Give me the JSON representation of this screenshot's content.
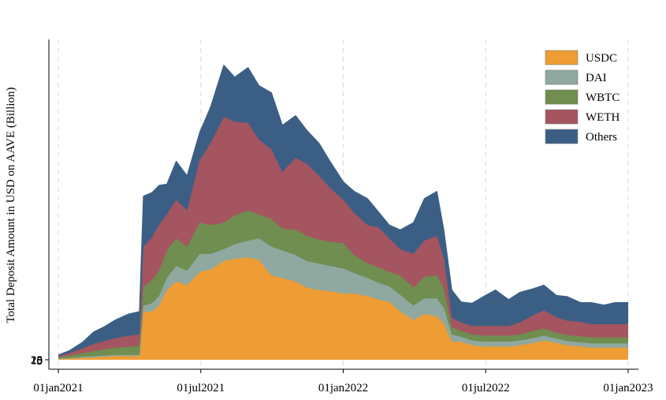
{
  "chart_data": {
    "type": "area",
    "stacked": true,
    "title": "",
    "xlabel": "",
    "ylabel": "Total Deposit Amount in USD on AAVE (Billion)",
    "y_tick_labels": [
      "0",
      "5",
      "10",
      "15",
      "20",
      "25"
    ],
    "x_ticks": [
      "01jan2021",
      "01jul2021",
      "01jan2022",
      "01jul2022",
      "01jan2023"
    ],
    "xlim": [
      "2021-01-01",
      "2023-01-01"
    ],
    "ylim": [
      0,
      25
    ],
    "grid": "vertical-dashed",
    "legend_position": "top-right",
    "x": [
      "2021-01-01",
      "2021-01-15",
      "2021-02-01",
      "2021-02-15",
      "2021-03-01",
      "2021-03-15",
      "2021-04-01",
      "2021-04-15",
      "2021-04-20",
      "2021-05-01",
      "2021-05-10",
      "2021-05-20",
      "2021-06-01",
      "2021-06-15",
      "2021-07-01",
      "2021-07-15",
      "2021-08-01",
      "2021-08-15",
      "2021-09-01",
      "2021-09-15",
      "2021-10-01",
      "2021-10-15",
      "2021-11-01",
      "2021-11-15",
      "2021-12-01",
      "2021-12-15",
      "2022-01-01",
      "2022-01-15",
      "2022-02-01",
      "2022-02-15",
      "2022-03-01",
      "2022-03-15",
      "2022-04-01",
      "2022-04-15",
      "2022-05-01",
      "2022-05-10",
      "2022-05-20",
      "2022-06-01",
      "2022-06-15",
      "2022-07-01",
      "2022-07-15",
      "2022-08-01",
      "2022-08-15",
      "2022-09-01",
      "2022-09-15",
      "2022-10-01",
      "2022-10-15",
      "2022-11-01",
      "2022-11-15",
      "2022-12-01",
      "2022-12-15",
      "2023-01-01"
    ],
    "series": [
      {
        "name": "USDC",
        "color": "#ee9c34",
        "values": [
          0.05,
          0.1,
          0.15,
          0.2,
          0.25,
          0.3,
          0.3,
          0.3,
          4.0,
          4.0,
          4.5,
          5.8,
          6.5,
          6.2,
          7.3,
          7.5,
          8.2,
          8.4,
          8.5,
          8.3,
          7.0,
          6.8,
          6.5,
          6.0,
          5.8,
          5.7,
          5.5,
          5.5,
          5.3,
          5.0,
          4.8,
          4.0,
          3.3,
          3.8,
          3.6,
          3.0,
          1.5,
          1.5,
          1.2,
          1.1,
          1.1,
          1.1,
          1.2,
          1.4,
          1.6,
          1.4,
          1.2,
          1.1,
          1.0,
          1.0,
          1.0,
          1.0
        ]
      },
      {
        "name": "DAI",
        "color": "#8fa8a0",
        "values": [
          0.05,
          0.05,
          0.1,
          0.1,
          0.1,
          0.1,
          0.1,
          0.1,
          0.5,
          0.7,
          0.8,
          1.0,
          1.3,
          1.2,
          1.5,
          1.3,
          1.0,
          1.2,
          1.4,
          1.8,
          2.4,
          2.3,
          2.2,
          2.2,
          2.2,
          2.1,
          2.1,
          1.7,
          1.5,
          1.4,
          1.3,
          1.4,
          1.2,
          1.3,
          1.5,
          1.3,
          0.6,
          0.4,
          0.4,
          0.4,
          0.4,
          0.4,
          0.4,
          0.4,
          0.4,
          0.35,
          0.35,
          0.35,
          0.35,
          0.35,
          0.35,
          0.35
        ]
      },
      {
        "name": "WBTC",
        "color": "#6f8e4f",
        "values": [
          0.1,
          0.2,
          0.3,
          0.4,
          0.5,
          0.6,
          0.7,
          0.75,
          1.6,
          1.9,
          2.1,
          2.3,
          2.3,
          2.0,
          2.6,
          2.4,
          2.2,
          2.4,
          2.5,
          2.0,
          2.3,
          1.8,
          2.1,
          2.1,
          2.0,
          2.0,
          2.1,
          1.5,
          1.2,
          1.3,
          1.2,
          1.6,
          1.5,
          1.8,
          1.9,
          1.6,
          0.6,
          0.5,
          0.5,
          0.5,
          0.5,
          0.5,
          0.5,
          0.6,
          0.6,
          0.5,
          0.5,
          0.5,
          0.5,
          0.5,
          0.5,
          0.5
        ]
      },
      {
        "name": "WETH",
        "color": "#a45560",
        "values": [
          0.1,
          0.2,
          0.4,
          0.6,
          0.7,
          0.8,
          0.9,
          0.95,
          3.3,
          3.6,
          3.8,
          3.0,
          3.2,
          3.0,
          5.2,
          6.8,
          8.8,
          7.8,
          7.3,
          6.2,
          5.8,
          4.7,
          6.0,
          6.0,
          5.3,
          4.5,
          3.6,
          3.5,
          3.2,
          3.3,
          2.8,
          2.2,
          2.8,
          3.0,
          3.3,
          2.5,
          0.8,
          0.7,
          0.7,
          0.8,
          0.8,
          0.8,
          1.0,
          1.3,
          1.5,
          1.3,
          1.2,
          1.2,
          1.1,
          1.1,
          1.1,
          1.1
        ]
      },
      {
        "name": "Others",
        "color": "#3b5f84",
        "values": [
          0.1,
          0.2,
          0.5,
          1.0,
          1.2,
          1.5,
          1.8,
          1.9,
          4.2,
          3.7,
          3.3,
          2.5,
          3.2,
          2.9,
          2.3,
          3.0,
          4.3,
          3.7,
          4.6,
          4.5,
          4.7,
          3.9,
          3.5,
          2.8,
          2.7,
          2.2,
          1.5,
          1.8,
          2.2,
          1.3,
          1.1,
          1.6,
          2.6,
          3.5,
          3.7,
          2.3,
          2.3,
          1.7,
          1.9,
          2.5,
          3.0,
          2.2,
          2.5,
          2.2,
          2.1,
          1.8,
          2.0,
          1.6,
          1.8,
          1.6,
          1.8,
          1.8
        ]
      }
    ]
  }
}
